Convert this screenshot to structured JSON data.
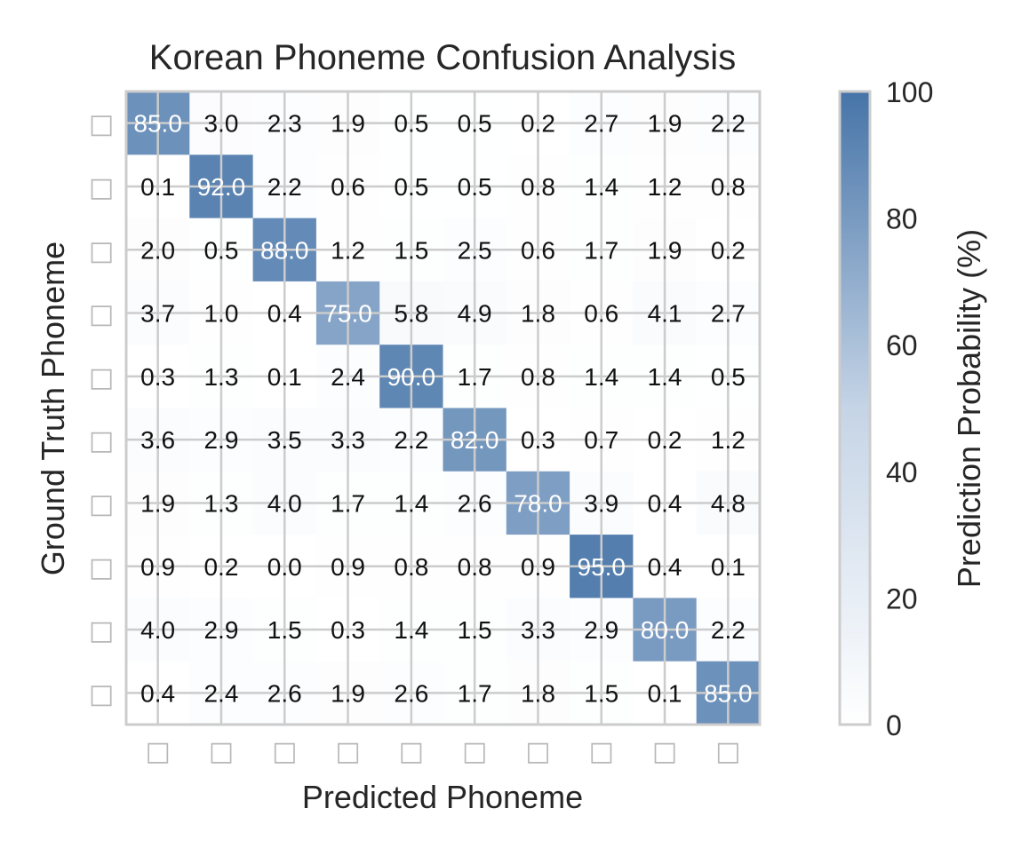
{
  "chart_data": {
    "type": "heatmap",
    "title": "Korean Phoneme Confusion Analysis",
    "xlabel": "Predicted Phoneme",
    "ylabel": "Ground Truth Phoneme",
    "x_tick_labels": [
      "□",
      "□",
      "□",
      "□",
      "□",
      "□",
      "□",
      "□",
      "□",
      "□"
    ],
    "y_tick_labels": [
      "□",
      "□",
      "□",
      "□",
      "□",
      "□",
      "□",
      "□",
      "□",
      "□"
    ],
    "values": [
      [
        85.0,
        3.0,
        2.3,
        1.9,
        0.5,
        0.5,
        0.2,
        2.7,
        1.9,
        2.2
      ],
      [
        0.1,
        92.0,
        2.2,
        0.6,
        0.5,
        0.5,
        0.8,
        1.4,
        1.2,
        0.8
      ],
      [
        2.0,
        0.5,
        88.0,
        1.2,
        1.5,
        2.5,
        0.6,
        1.7,
        1.9,
        0.2
      ],
      [
        3.7,
        1.0,
        0.4,
        75.0,
        5.8,
        4.9,
        1.8,
        0.6,
        4.1,
        2.7
      ],
      [
        0.3,
        1.3,
        0.1,
        2.4,
        90.0,
        1.7,
        0.8,
        1.4,
        1.4,
        0.5
      ],
      [
        3.6,
        2.9,
        3.5,
        3.3,
        2.2,
        82.0,
        0.3,
        0.7,
        0.2,
        1.2
      ],
      [
        1.9,
        1.3,
        4.0,
        1.7,
        1.4,
        2.6,
        78.0,
        3.9,
        0.4,
        4.8
      ],
      [
        0.9,
        0.2,
        0.0,
        0.9,
        0.8,
        0.8,
        0.9,
        95.0,
        0.4,
        0.1
      ],
      [
        4.0,
        2.9,
        1.5,
        0.3,
        1.4,
        1.5,
        3.3,
        2.9,
        80.0,
        2.2
      ],
      [
        0.4,
        2.4,
        2.6,
        1.9,
        2.6,
        1.7,
        1.8,
        1.5,
        0.1,
        85.0
      ]
    ],
    "value_range": [
      0,
      100
    ],
    "colorbar": {
      "label": "Prediction Probability (%)",
      "ticks": [
        0,
        20,
        40,
        60,
        80,
        100
      ],
      "low_color": "#ffffff",
      "mid_color": "#c5d4e6",
      "high_color": "#4674a8"
    },
    "grid": true
  }
}
